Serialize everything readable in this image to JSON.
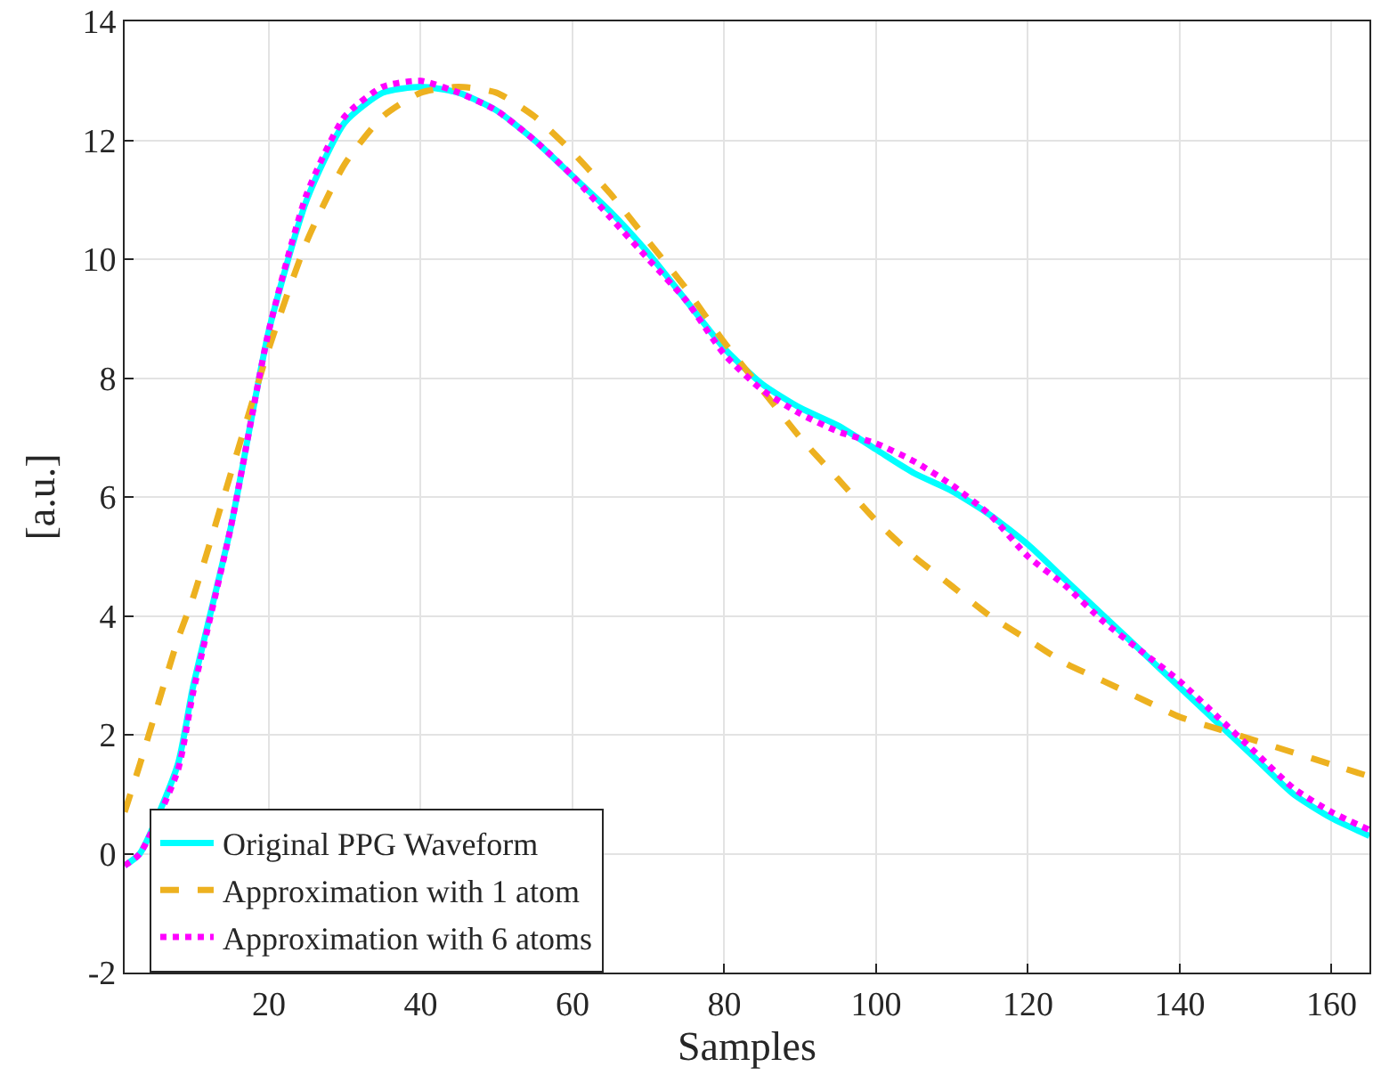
{
  "chart_data": {
    "type": "line",
    "xlabel": "Samples",
    "ylabel": "[a.u.]",
    "x": [
      1,
      3,
      8,
      10,
      15,
      20,
      25,
      30,
      35,
      40,
      45,
      50,
      55,
      60,
      65,
      70,
      75,
      80,
      85,
      90,
      95,
      100,
      105,
      110,
      115,
      120,
      125,
      130,
      135,
      140,
      145,
      150,
      155,
      160,
      165
    ],
    "series": [
      {
        "name": "Original PPG Waveform",
        "color": "#00ffff",
        "line_style": "solid",
        "values": [
          -0.2,
          0.0,
          1.5,
          2.8,
          5.5,
          8.8,
          11.0,
          12.3,
          12.8,
          12.9,
          12.8,
          12.5,
          12.0,
          11.4,
          10.8,
          10.1,
          9.3,
          8.5,
          7.9,
          7.5,
          7.2,
          6.8,
          6.4,
          6.1,
          5.7,
          5.2,
          4.6,
          4.0,
          3.4,
          2.8,
          2.2,
          1.6,
          1.0,
          0.6,
          0.3
        ]
      },
      {
        "name": "Approximation with 1 atom",
        "color": "#edb120",
        "line_style": "dashed",
        "values": [
          0.7,
          1.5,
          3.6,
          4.3,
          6.4,
          8.5,
          10.3,
          11.6,
          12.4,
          12.8,
          12.9,
          12.8,
          12.4,
          11.8,
          11.1,
          10.3,
          9.5,
          8.6,
          7.8,
          7.0,
          6.3,
          5.6,
          5.0,
          4.5,
          4.0,
          3.6,
          3.2,
          2.9,
          2.6,
          2.3,
          2.1,
          1.9,
          1.7,
          1.5,
          1.3
        ]
      },
      {
        "name": "Approximation with 6 atoms",
        "color": "#ff00ff",
        "line_style": "dotted",
        "values": [
          -0.2,
          0.0,
          1.4,
          2.7,
          5.5,
          8.8,
          11.1,
          12.4,
          12.9,
          13.0,
          12.8,
          12.5,
          12.0,
          11.4,
          10.7,
          10.0,
          9.3,
          8.4,
          7.8,
          7.4,
          7.1,
          6.9,
          6.6,
          6.2,
          5.7,
          5.0,
          4.5,
          3.9,
          3.4,
          2.9,
          2.3,
          1.7,
          1.1,
          0.7,
          0.4
        ]
      }
    ],
    "xlim": [
      1,
      165
    ],
    "ylim": [
      -2,
      14
    ],
    "xticks": [
      20,
      40,
      60,
      80,
      100,
      120,
      140,
      160
    ],
    "yticks": [
      -2,
      0,
      2,
      4,
      6,
      8,
      10,
      12,
      14
    ],
    "grid": true,
    "legend": "bottom left"
  }
}
